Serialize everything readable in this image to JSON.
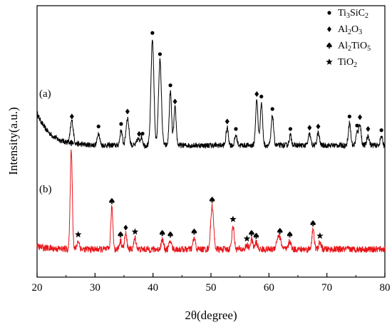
{
  "chart_data": {
    "type": "line",
    "title": "",
    "xlabel": "2θ(degree)",
    "ylabel": "Intensity(a.u.)",
    "xlim": [
      20,
      80
    ],
    "x_ticks": [
      20,
      30,
      40,
      50,
      60,
      70,
      80
    ],
    "y_ticks": [],
    "grid": false,
    "legend_position": "top-right",
    "legend": [
      {
        "symbol": "circle",
        "base": "Ti",
        "sub1": "3",
        "mid": "SiC",
        "sub2": "2",
        "text": "Ti3SiC2"
      },
      {
        "symbol": "diamond",
        "base": "Al",
        "sub1": "2",
        "mid": "O",
        "sub2": "3",
        "text": "Al2O3"
      },
      {
        "symbol": "spade",
        "base": "Al",
        "sub1": "2",
        "mid": "TiO",
        "sub2": "5",
        "text": "Al2TiO5"
      },
      {
        "symbol": "star",
        "base": "TiO",
        "sub1": "2",
        "mid": "",
        "sub2": "",
        "text": "TiO2"
      }
    ],
    "series": [
      {
        "name": "(a)",
        "color": "#000000",
        "y_range": [
          0,
          100
        ],
        "start_level": 38,
        "baseline": 12,
        "noise": 2.2,
        "peaks": [
          {
            "x": 26.0,
            "h": 18,
            "w": 0.25
          },
          {
            "x": 30.6,
            "h": 10,
            "w": 0.2
          },
          {
            "x": 34.5,
            "h": 12,
            "w": 0.2
          },
          {
            "x": 35.6,
            "h": 22,
            "w": 0.25
          },
          {
            "x": 37.4,
            "h": 5,
            "w": 0.2
          },
          {
            "x": 38.0,
            "h": 7,
            "w": 0.2
          },
          {
            "x": 39.9,
            "h": 85,
            "w": 0.25
          },
          {
            "x": 41.2,
            "h": 68,
            "w": 0.25
          },
          {
            "x": 43.0,
            "h": 43,
            "w": 0.2
          },
          {
            "x": 43.8,
            "h": 30,
            "w": 0.2
          },
          {
            "x": 52.8,
            "h": 14,
            "w": 0.2
          },
          {
            "x": 54.3,
            "h": 8,
            "w": 0.2
          },
          {
            "x": 57.9,
            "h": 36,
            "w": 0.2
          },
          {
            "x": 58.7,
            "h": 34,
            "w": 0.2
          },
          {
            "x": 60.6,
            "h": 24,
            "w": 0.2
          },
          {
            "x": 63.7,
            "h": 8,
            "w": 0.2
          },
          {
            "x": 67.0,
            "h": 9,
            "w": 0.2
          },
          {
            "x": 68.5,
            "h": 10,
            "w": 0.2
          },
          {
            "x": 73.9,
            "h": 18,
            "w": 0.2
          },
          {
            "x": 75.2,
            "h": 10,
            "w": 0.2
          },
          {
            "x": 75.7,
            "h": 17,
            "w": 0.2
          },
          {
            "x": 77.1,
            "h": 8,
            "w": 0.2
          },
          {
            "x": 79.4,
            "h": 7,
            "w": 0.2
          }
        ],
        "markers": [
          {
            "x": 26.0,
            "s": "diamond"
          },
          {
            "x": 30.6,
            "s": "circle"
          },
          {
            "x": 34.5,
            "s": "circle"
          },
          {
            "x": 35.6,
            "s": "diamond"
          },
          {
            "x": 37.6,
            "s": "diamond"
          },
          {
            "x": 38.2,
            "s": "circle"
          },
          {
            "x": 39.9,
            "s": "circle"
          },
          {
            "x": 41.2,
            "s": "circle"
          },
          {
            "x": 43.0,
            "s": "circle"
          },
          {
            "x": 43.8,
            "s": "diamond"
          },
          {
            "x": 52.8,
            "s": "diamond"
          },
          {
            "x": 54.3,
            "s": "circle"
          },
          {
            "x": 57.9,
            "s": "diamond"
          },
          {
            "x": 58.7,
            "s": "circle"
          },
          {
            "x": 60.6,
            "s": "circle"
          },
          {
            "x": 63.7,
            "s": "circle"
          },
          {
            "x": 67.0,
            "s": "diamond"
          },
          {
            "x": 68.5,
            "s": "diamond"
          },
          {
            "x": 73.9,
            "s": "circle"
          },
          {
            "x": 75.2,
            "s": "circle"
          },
          {
            "x": 75.7,
            "s": "diamond"
          },
          {
            "x": 77.1,
            "s": "diamond"
          },
          {
            "x": 79.4,
            "s": "circle"
          }
        ]
      },
      {
        "name": "(b)",
        "color": "#e8161b",
        "y_range": [
          0,
          100
        ],
        "start_level": 20,
        "baseline": 18,
        "noise": 2.4,
        "peaks": [
          {
            "x": 25.9,
            "h": 72,
            "w": 0.18
          },
          {
            "x": 27.1,
            "h": 6,
            "w": 0.2
          },
          {
            "x": 32.9,
            "h": 30,
            "w": 0.18
          },
          {
            "x": 34.4,
            "h": 6,
            "w": 0.2
          },
          {
            "x": 35.3,
            "h": 11,
            "w": 0.2
          },
          {
            "x": 36.9,
            "h": 8,
            "w": 0.2
          },
          {
            "x": 41.6,
            "h": 7,
            "w": 0.2
          },
          {
            "x": 43.0,
            "h": 6,
            "w": 0.2
          },
          {
            "x": 47.1,
            "h": 8,
            "w": 0.2
          },
          {
            "x": 50.2,
            "h": 31,
            "w": 0.25
          },
          {
            "x": 53.8,
            "h": 17,
            "w": 0.2
          },
          {
            "x": 56.2,
            "h": 3,
            "w": 0.2
          },
          {
            "x": 57.0,
            "h": 7,
            "w": 0.2
          },
          {
            "x": 57.8,
            "h": 5,
            "w": 0.2
          },
          {
            "x": 61.7,
            "h": 10,
            "w": 0.35
          },
          {
            "x": 63.6,
            "h": 6,
            "w": 0.2
          },
          {
            "x": 67.6,
            "h": 14,
            "w": 0.2
          },
          {
            "x": 68.8,
            "h": 5,
            "w": 0.2
          }
        ],
        "markers": [
          {
            "x": 25.9,
            "s": "spade"
          },
          {
            "x": 27.1,
            "s": "star"
          },
          {
            "x": 32.9,
            "s": "spade"
          },
          {
            "x": 34.4,
            "s": "spade"
          },
          {
            "x": 35.3,
            "s": "diamond"
          },
          {
            "x": 36.9,
            "s": "star"
          },
          {
            "x": 41.6,
            "s": "spade"
          },
          {
            "x": 43.0,
            "s": "spade"
          },
          {
            "x": 47.1,
            "s": "spade"
          },
          {
            "x": 50.2,
            "s": "spade"
          },
          {
            "x": 53.8,
            "s": "star"
          },
          {
            "x": 56.2,
            "s": "star"
          },
          {
            "x": 57.0,
            "s": "spade"
          },
          {
            "x": 57.8,
            "s": "spade"
          },
          {
            "x": 61.9,
            "s": "spade"
          },
          {
            "x": 63.6,
            "s": "spade"
          },
          {
            "x": 67.6,
            "s": "spade"
          },
          {
            "x": 68.8,
            "s": "star"
          }
        ]
      }
    ]
  }
}
